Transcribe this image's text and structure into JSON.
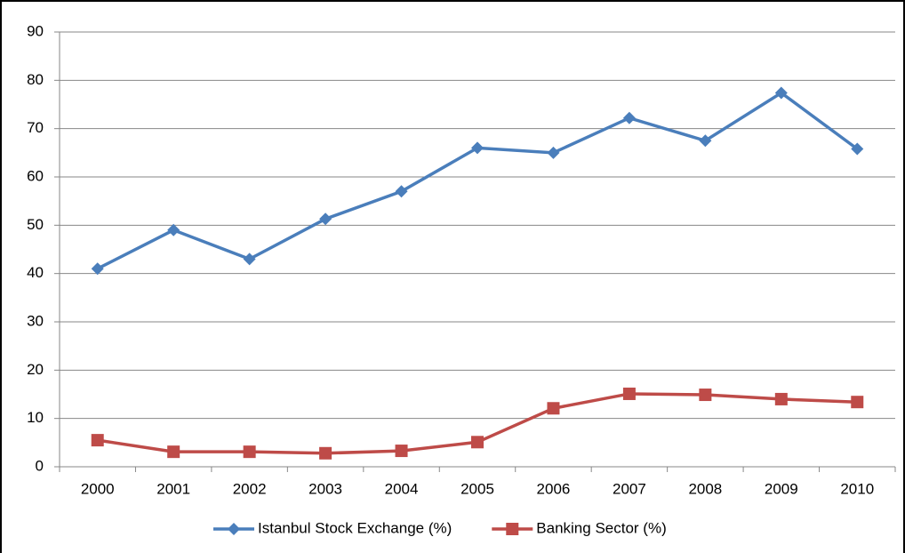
{
  "chart_data": {
    "type": "line",
    "categories": [
      "2000",
      "2001",
      "2002",
      "2003",
      "2004",
      "2005",
      "2006",
      "2007",
      "2008",
      "2009",
      "2010"
    ],
    "series": [
      {
        "name": "Istanbul Stock Exchange (%)",
        "color": "#4a7ebb",
        "marker": "diamond",
        "values": [
          41,
          49,
          43,
          51.3,
          57,
          66,
          65,
          72.2,
          67.5,
          77.4,
          65.8
        ]
      },
      {
        "name": "Banking Sector (%)",
        "color": "#be4b48",
        "marker": "square",
        "values": [
          5.5,
          3.1,
          3.1,
          2.8,
          3.3,
          5.1,
          12.1,
          15.1,
          14.9,
          14,
          13.4
        ]
      }
    ],
    "ylim": [
      0,
      90
    ],
    "yticks": [
      0,
      10,
      20,
      30,
      40,
      50,
      60,
      70,
      80,
      90
    ],
    "grid": true,
    "legend": "bottom"
  }
}
